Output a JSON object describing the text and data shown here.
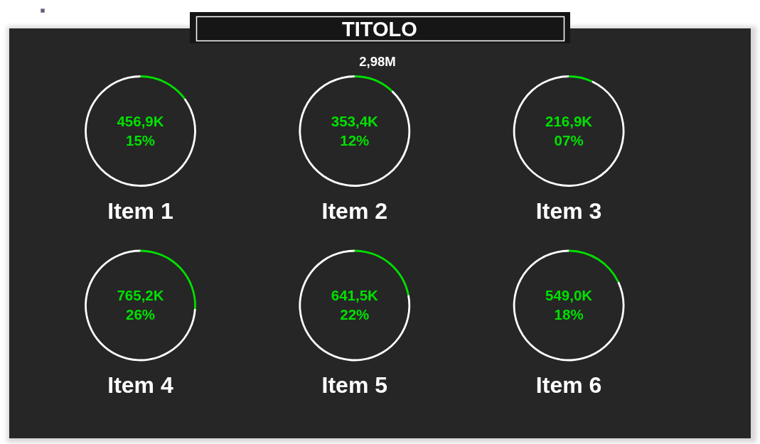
{
  "chart_data": [
    {
      "type": "other",
      "title": "TITOLO",
      "subtitle": "2,98M"
    },
    {
      "type": "donut",
      "title": "Item 1",
      "categories": [
        null,
        null
      ],
      "values": [
        15,
        85
      ],
      "colors": [
        "#00e000",
        "#ffffff"
      ],
      "annotations": [
        "456,9K",
        "15%"
      ]
    },
    {
      "type": "donut",
      "title": "Item 2",
      "categories": [
        null,
        null
      ],
      "values": [
        12,
        88
      ],
      "colors": [
        "#00e000",
        "#ffffff"
      ],
      "annotations": [
        "353,4K",
        "12%"
      ]
    },
    {
      "type": "donut",
      "title": "Item 3",
      "categories": [
        null,
        null
      ],
      "values": [
        7,
        93
      ],
      "colors": [
        "#00e000",
        "#ffffff"
      ],
      "annotations": [
        "216,9K",
        "07%"
      ]
    },
    {
      "type": "donut",
      "title": "Item 4",
      "categories": [
        null,
        null
      ],
      "values": [
        26,
        74
      ],
      "colors": [
        "#00e000",
        "#ffffff"
      ],
      "annotations": [
        "765,2K",
        "26%"
      ]
    },
    {
      "type": "donut",
      "title": "Item 5",
      "categories": [
        null,
        null
      ],
      "values": [
        22,
        78
      ],
      "colors": [
        "#00e000",
        "#ffffff"
      ],
      "annotations": [
        "641,5K",
        "22%"
      ]
    },
    {
      "type": "donut",
      "title": "Item 6",
      "categories": [
        null,
        null
      ],
      "values": [
        18,
        82
      ],
      "colors": [
        "#00e000",
        "#ffffff"
      ],
      "annotations": [
        "549,0K",
        "18%"
      ]
    }
  ]
}
